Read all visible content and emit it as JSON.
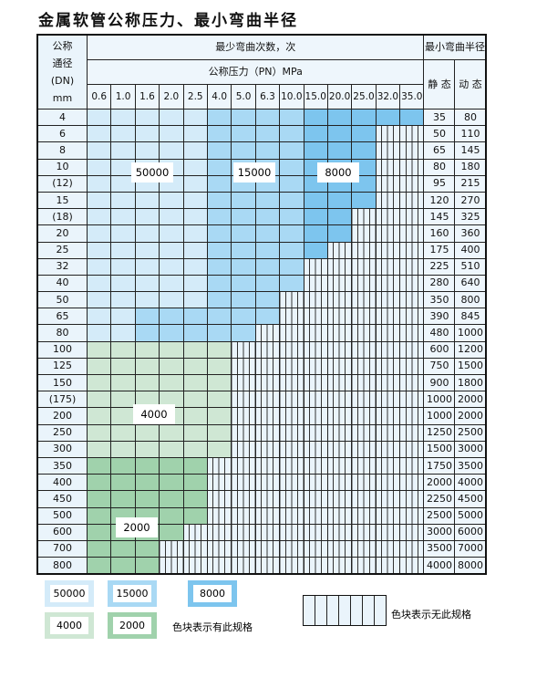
{
  "title": "金属软管公称压力、最小弯曲半径",
  "header": {
    "dn_label": [
      "公称",
      "通径",
      "(DN)",
      "mm"
    ],
    "bend_count": "最少弯曲次数，次",
    "pressure": "公称压力（PN）MPa",
    "radius": "最小弯曲半径",
    "static": "静 态",
    "dynamic": "动 态",
    "pressures": [
      "0.6",
      "1.0",
      "1.6",
      "2.0",
      "2.5",
      "4.0",
      "5.0",
      "6.3",
      "10.0",
      "15.0",
      "20.0",
      "25.0",
      "32.0",
      "35.0"
    ]
  },
  "colors": {
    "50000": "#d4ebf9",
    "15000": "#a9d9f4",
    "8000": "#7dc5ee",
    "4000": "#cfe7d4",
    "2000": "#a0d2ac",
    "none": "#eaf4fb"
  },
  "rows": [
    {
      "dn": "4",
      "static": "35",
      "dynamic": "80",
      "segments": [
        [
          "50000",
          5
        ],
        [
          "15000",
          4
        ],
        [
          "8000",
          5
        ]
      ]
    },
    {
      "dn": "6",
      "static": "50",
      "dynamic": "110",
      "segments": [
        [
          "50000",
          5
        ],
        [
          "15000",
          4
        ],
        [
          "8000",
          3
        ]
      ]
    },
    {
      "dn": "8",
      "static": "65",
      "dynamic": "145",
      "segments": [
        [
          "50000",
          5
        ],
        [
          "15000",
          4
        ],
        [
          "8000",
          3
        ]
      ]
    },
    {
      "dn": "10",
      "static": "80",
      "dynamic": "180",
      "segments": [
        [
          "50000",
          5
        ],
        [
          "15000",
          4
        ],
        [
          "8000",
          3
        ]
      ]
    },
    {
      "dn": "(12)",
      "static": "95",
      "dynamic": "215",
      "segments": [
        [
          "50000",
          5
        ],
        [
          "15000",
          4
        ],
        [
          "8000",
          3
        ]
      ]
    },
    {
      "dn": "15",
      "static": "120",
      "dynamic": "270",
      "segments": [
        [
          "50000",
          5
        ],
        [
          "15000",
          4
        ],
        [
          "8000",
          3
        ]
      ]
    },
    {
      "dn": "(18)",
      "static": "145",
      "dynamic": "325",
      "segments": [
        [
          "50000",
          5
        ],
        [
          "15000",
          4
        ],
        [
          "8000",
          2
        ]
      ]
    },
    {
      "dn": "20",
      "static": "160",
      "dynamic": "360",
      "segments": [
        [
          "50000",
          5
        ],
        [
          "15000",
          4
        ],
        [
          "8000",
          2
        ]
      ]
    },
    {
      "dn": "25",
      "static": "175",
      "dynamic": "400",
      "segments": [
        [
          "50000",
          5
        ],
        [
          "15000",
          4
        ],
        [
          "8000",
          1
        ]
      ]
    },
    {
      "dn": "32",
      "static": "225",
      "dynamic": "510",
      "segments": [
        [
          "50000",
          5
        ],
        [
          "15000",
          4
        ]
      ]
    },
    {
      "dn": "40",
      "static": "280",
      "dynamic": "640",
      "segments": [
        [
          "50000",
          5
        ],
        [
          "15000",
          4
        ]
      ]
    },
    {
      "dn": "50",
      "static": "350",
      "dynamic": "800",
      "segments": [
        [
          "50000",
          5
        ],
        [
          "15000",
          3
        ]
      ]
    },
    {
      "dn": "65",
      "static": "390",
      "dynamic": "845",
      "segments": [
        [
          "50000",
          2
        ],
        [
          "15000",
          6
        ]
      ]
    },
    {
      "dn": "80",
      "static": "480",
      "dynamic": "1000",
      "segments": [
        [
          "50000",
          2
        ],
        [
          "15000",
          5
        ]
      ]
    },
    {
      "dn": "100",
      "static": "600",
      "dynamic": "1200",
      "segments": [
        [
          "4000",
          6
        ]
      ]
    },
    {
      "dn": "125",
      "static": "750",
      "dynamic": "1500",
      "segments": [
        [
          "4000",
          6
        ]
      ]
    },
    {
      "dn": "150",
      "static": "900",
      "dynamic": "1800",
      "segments": [
        [
          "4000",
          6
        ]
      ]
    },
    {
      "dn": "(175)",
      "static": "1000",
      "dynamic": "2000",
      "segments": [
        [
          "4000",
          6
        ]
      ]
    },
    {
      "dn": "200",
      "static": "1000",
      "dynamic": "2000",
      "segments": [
        [
          "4000",
          6
        ]
      ]
    },
    {
      "dn": "250",
      "static": "1250",
      "dynamic": "2500",
      "segments": [
        [
          "4000",
          6
        ]
      ]
    },
    {
      "dn": "300",
      "static": "1500",
      "dynamic": "3000",
      "segments": [
        [
          "4000",
          6
        ]
      ]
    },
    {
      "dn": "350",
      "static": "1750",
      "dynamic": "3500",
      "segments": [
        [
          "2000",
          5
        ]
      ]
    },
    {
      "dn": "400",
      "static": "2000",
      "dynamic": "4000",
      "segments": [
        [
          "2000",
          5
        ]
      ]
    },
    {
      "dn": "450",
      "static": "2250",
      "dynamic": "4500",
      "segments": [
        [
          "2000",
          5
        ]
      ]
    },
    {
      "dn": "500",
      "static": "2500",
      "dynamic": "5000",
      "segments": [
        [
          "2000",
          5
        ]
      ]
    },
    {
      "dn": "600",
      "static": "3000",
      "dynamic": "6000",
      "segments": [
        [
          "2000",
          4
        ]
      ]
    },
    {
      "dn": "700",
      "static": "3500",
      "dynamic": "7000",
      "segments": [
        [
          "2000",
          3
        ]
      ]
    },
    {
      "dn": "800",
      "static": "4000",
      "dynamic": "8000",
      "segments": [
        [
          "2000",
          3
        ]
      ]
    }
  ],
  "region_labels": [
    "50000",
    "15000",
    "8000",
    "4000",
    "2000"
  ],
  "legend": {
    "items": [
      "50000",
      "15000",
      "8000",
      "4000",
      "2000"
    ],
    "has_spec": "色块表示有此规格",
    "no_spec": "色块表示无此规格"
  }
}
